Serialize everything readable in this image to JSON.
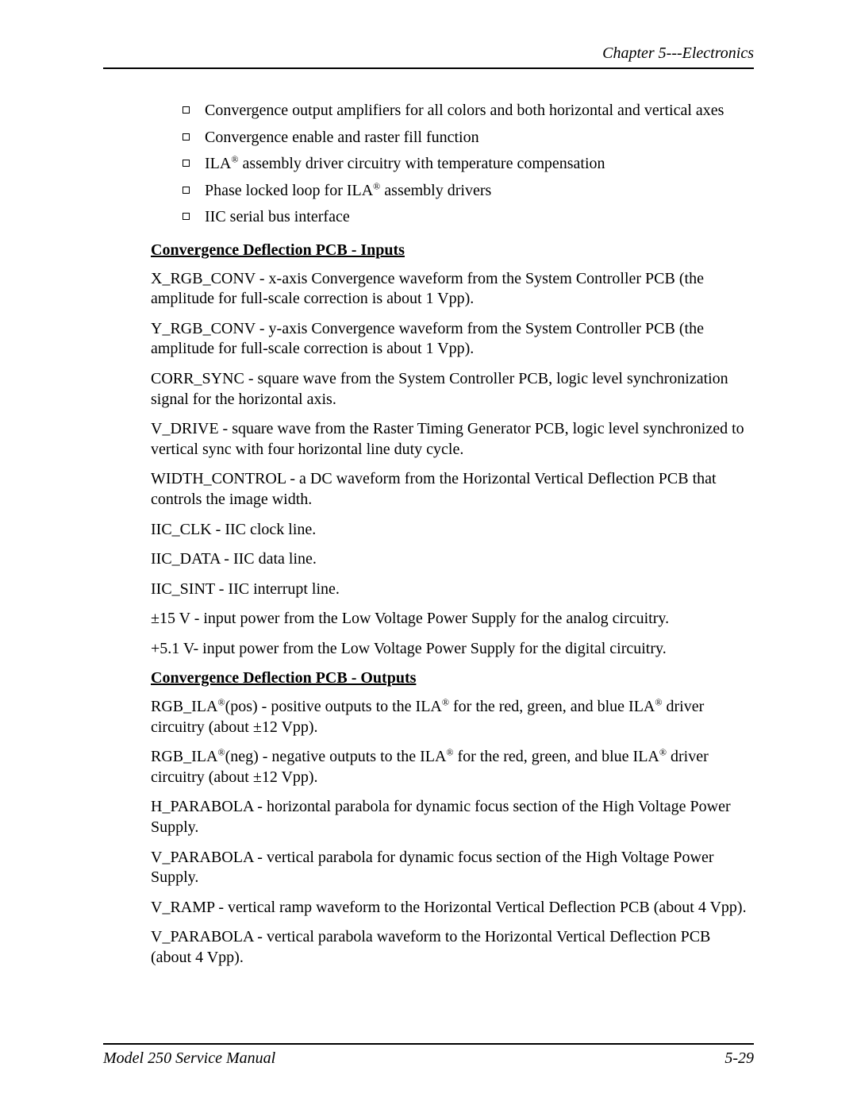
{
  "header": {
    "text": "Chapter 5---Electronics"
  },
  "bullets": [
    {
      "pre": "",
      "post": "Convergence output amplifiers for all colors and both horizontal and vertical axes",
      "sup": ""
    },
    {
      "pre": "",
      "post": "Convergence enable and raster fill function",
      "sup": ""
    },
    {
      "pre": "ILA",
      "sup": "®",
      "post": " assembly driver circuitry with temperature compensation"
    },
    {
      "pre": "Phase locked loop for ILA",
      "sup": "®",
      "post": " assembly drivers"
    },
    {
      "pre": "",
      "post": "IIC serial bus interface",
      "sup": ""
    }
  ],
  "sections": {
    "inputs": {
      "title": "Convergence Deflection PCB - Inputs",
      "paras": [
        "X_RGB_CONV - x-axis Convergence waveform from the System Controller PCB (the amplitude for full-scale correction is about 1 Vpp).",
        "Y_RGB_CONV - y-axis Convergence waveform from the System Controller PCB (the amplitude for full-scale correction is about 1 Vpp).",
        "CORR_SYNC - square wave from the System Controller PCB, logic level synchronization signal for the horizontal axis.",
        "V_DRIVE - square wave from the Raster Timing Generator PCB, logic level synchronized to vertical sync with four horizontal line duty cycle.",
        "WIDTH_CONTROL - a DC waveform from the Horizontal Vertical Deflection PCB that controls the image width.",
        "IIC_CLK - IIC clock line.",
        "IIC_DATA - IIC data line.",
        "IIC_SINT - IIC interrupt line.",
        "±15 V - input power from the Low Voltage Power Supply for the analog circuitry.",
        "+5.1 V- input power from the Low Voltage Power Supply for the digital circuitry."
      ]
    },
    "outputs": {
      "title": "Convergence Deflection PCB - Outputs",
      "pos": {
        "p1": "RGB_ILA",
        "s1": "®",
        "p2": "(pos) - positive outputs to the ILA",
        "s2": "®",
        "p3": " for the red, green, and blue ILA",
        "s3": "®",
        "p4": " driver circuitry (about ±12 Vpp)."
      },
      "neg": {
        "p1": "RGB_ILA",
        "s1": "®",
        "p2": "(neg) - negative outputs to the ILA",
        "s2": "®",
        "p3": " for the red, green, and blue ILA",
        "s3": "®",
        "p4": " driver circuitry (about ±12 Vpp)."
      },
      "paras": [
        "H_PARABOLA - horizontal parabola for dynamic focus section of the High Voltage Power Supply.",
        "V_PARABOLA - vertical parabola for dynamic focus section of the High Voltage Power Supply.",
        "V_RAMP - vertical ramp waveform to the Horizontal Vertical Deflection PCB (about 4 Vpp).",
        "V_PARABOLA - vertical parabola waveform to the Horizontal Vertical Deflection PCB (about 4 Vpp)."
      ]
    }
  },
  "footer": {
    "left": "Model 250 Service Manual",
    "right": "5-29"
  }
}
